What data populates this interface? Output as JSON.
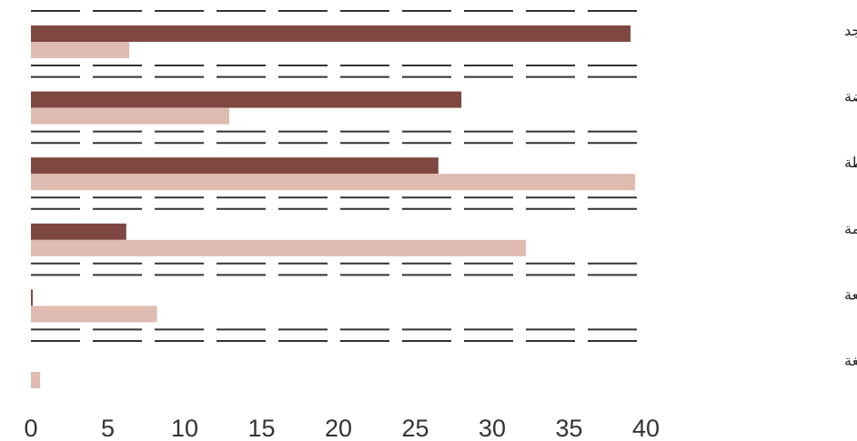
{
  "chart_data": {
    "type": "bar",
    "orientation": "horizontal",
    "categories": [
      "لا يوجد",
      "منخفضة",
      "متوسطة",
      "جسيمة",
      "مرتفعة",
      "بالغة"
    ],
    "series": [
      {
        "values": [
          39,
          28,
          26.5,
          6.2,
          0.1,
          0
        ]
      },
      {
        "values": [
          6.4,
          12.9,
          39.3,
          32.2,
          8.2,
          0.6
        ]
      }
    ],
    "xlim": [
      0,
      40
    ],
    "xticks": [
      0,
      5,
      10,
      15,
      20,
      25,
      30,
      35,
      40
    ],
    "grid": true,
    "legend": "none",
    "title": "",
    "xlabel": "",
    "ylabel": "",
    "colors": {
      "series_dark": "#7e4840",
      "series_light": "#dfbbb1",
      "grid": "#333333",
      "text": "#222222"
    }
  }
}
